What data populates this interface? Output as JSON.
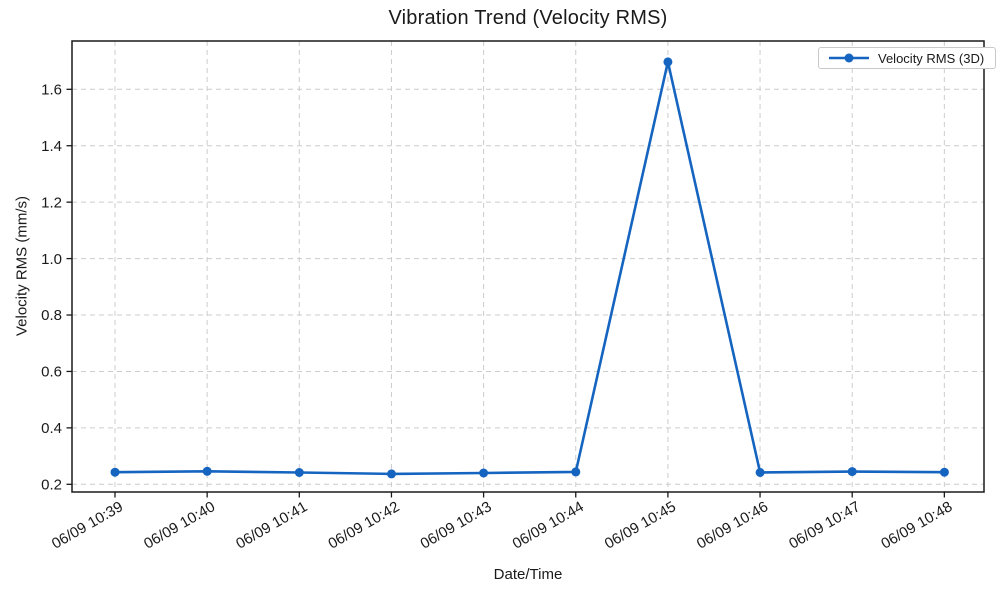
{
  "chart_data": {
    "type": "line",
    "title": "Vibration Trend (Velocity RMS)",
    "xlabel": "Date/Time",
    "ylabel": "Velocity RMS (mm/s)",
    "categories": [
      "06/09 10:39",
      "06/09 10:40",
      "06/09 10:41",
      "06/09 10:42",
      "06/09 10:43",
      "06/09 10:44",
      "06/09 10:45",
      "06/09 10:46",
      "06/09 10:47",
      "06/09 10:48"
    ],
    "series": [
      {
        "name": "Velocity RMS (3D)",
        "color": "#1565c0",
        "values": [
          0.243,
          0.246,
          0.242,
          0.237,
          0.24,
          0.244,
          1.697,
          0.242,
          0.245,
          0.243
        ]
      }
    ],
    "yticks": [
      0.2,
      0.4,
      0.6,
      0.8,
      1.0,
      1.2,
      1.4,
      1.6
    ],
    "ylim": [
      0.17,
      1.77
    ],
    "grid": "dashed both axes",
    "legend_position": "upper right",
    "x_tick_rotation_deg": 30
  },
  "styles": {
    "line_color": "#1565c0",
    "grid_color": "#cccccc",
    "spine_color": "#1a1a1a",
    "tick_text_color": "#1a1a1a",
    "background_color": "#ffffff"
  }
}
